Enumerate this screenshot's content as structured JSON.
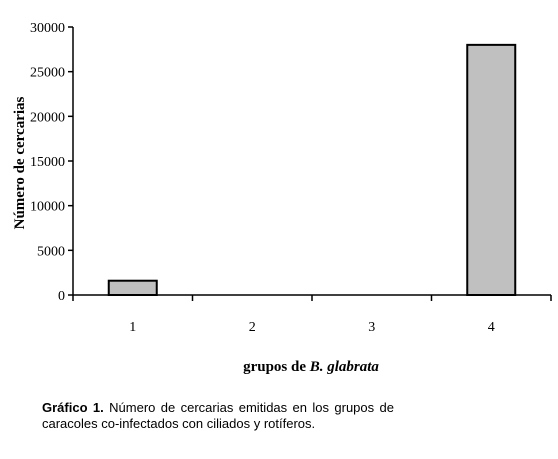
{
  "chart_data": {
    "type": "bar",
    "categories": [
      "1",
      "2",
      "3",
      "4"
    ],
    "values": [
      1600,
      0,
      0,
      28000
    ],
    "ylabel": "Número de cercarias",
    "xlabel_prefix": "grupos de ",
    "xlabel_species": "B. glabrata",
    "ylim": [
      0,
      30000
    ],
    "yticks": [
      0,
      5000,
      10000,
      15000,
      20000,
      25000,
      30000
    ],
    "grid": false,
    "bar_color": "#c0c0c0",
    "legend": "none"
  },
  "caption": {
    "label": "Gráfico 1.",
    "text": " Número de cercarias emitidas en los grupos de caracoles co-infectados con ciliados y rotíferos."
  }
}
